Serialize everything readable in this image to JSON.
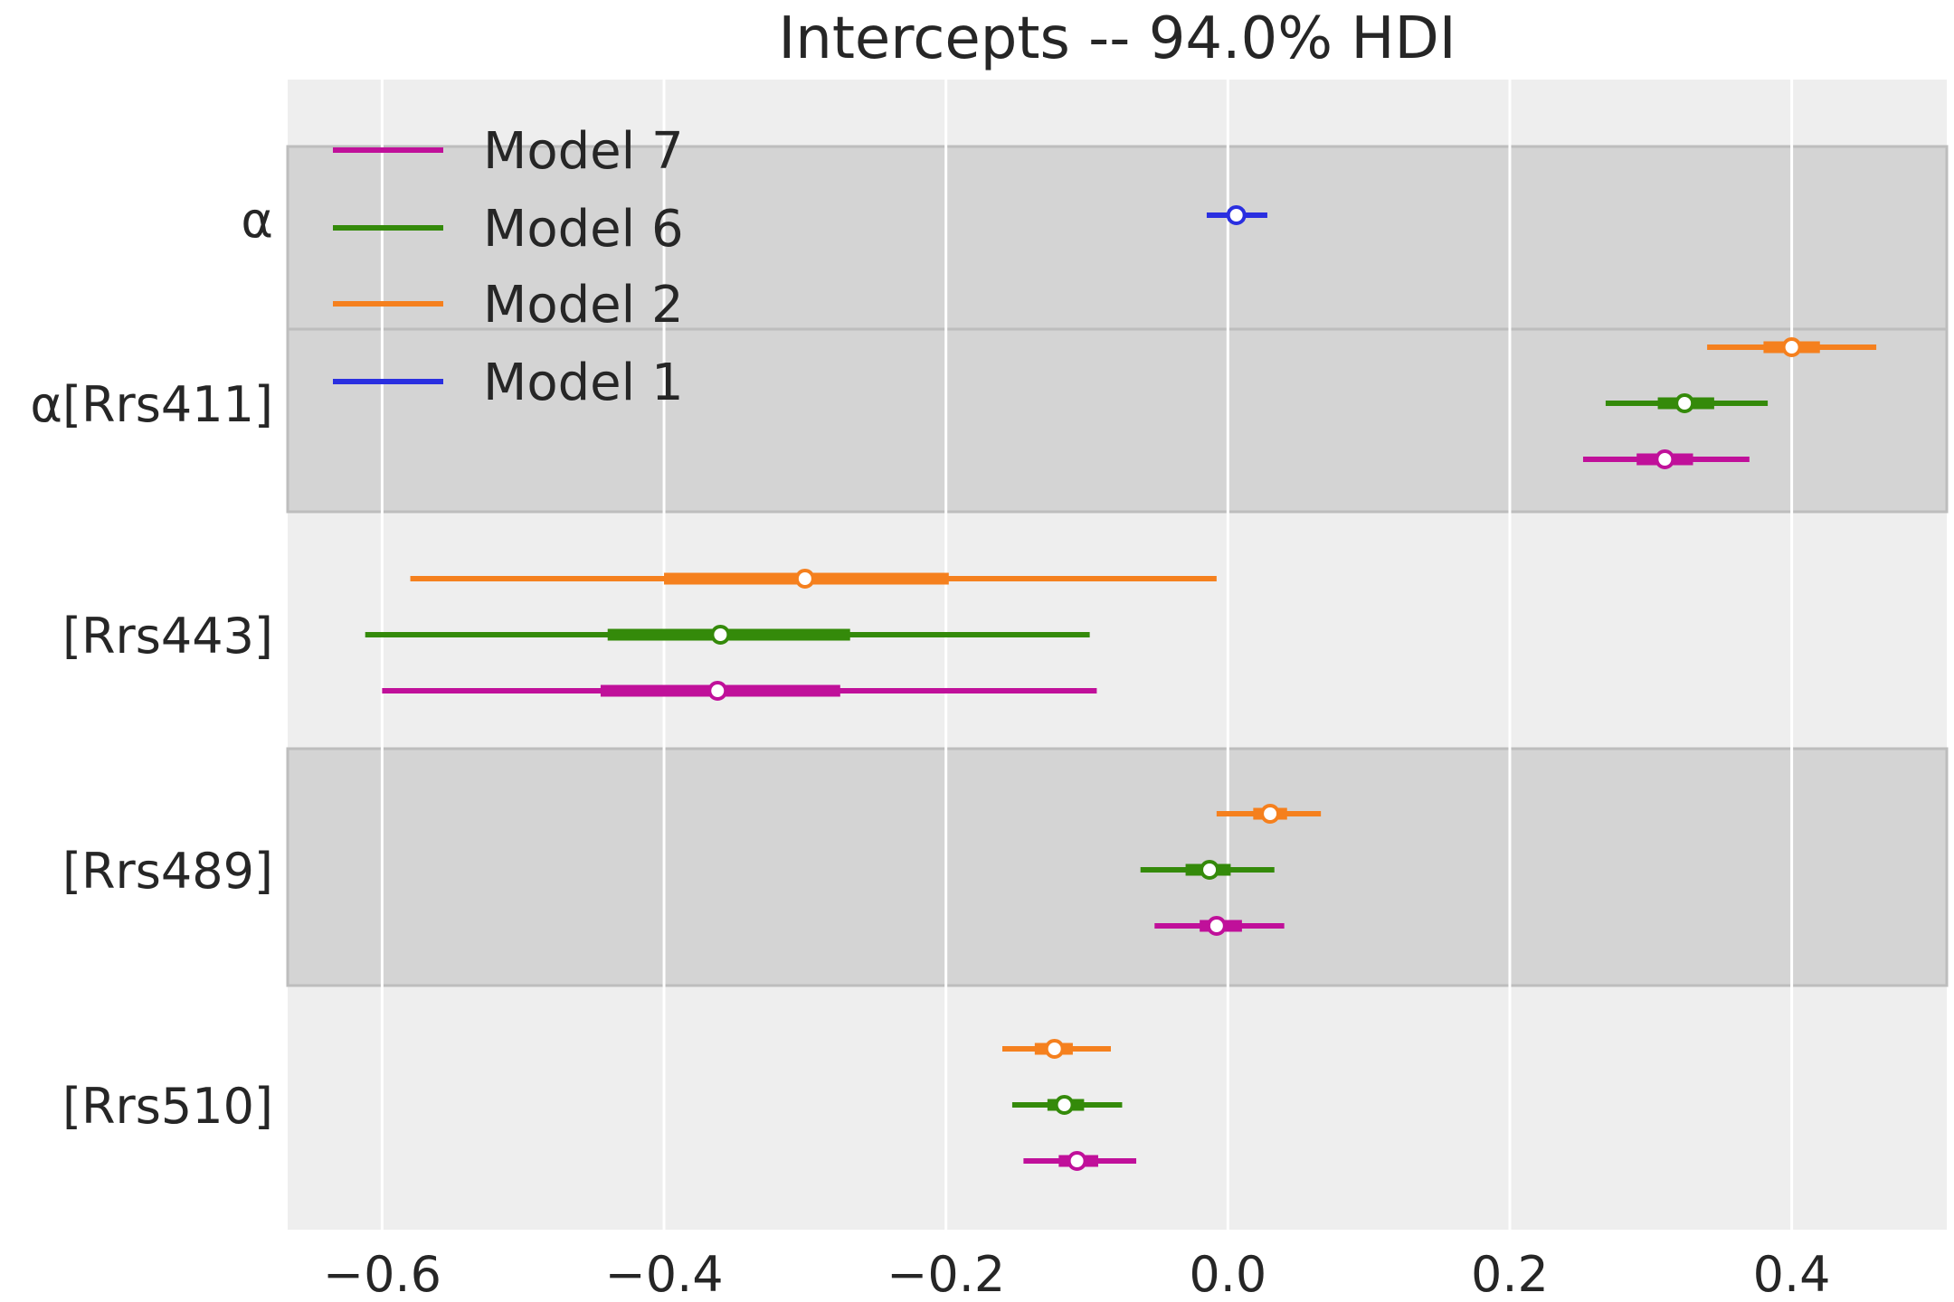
{
  "chart_data": {
    "type": "forest",
    "title": "Intercepts -- 94.0% HDI",
    "xlabel": "",
    "ylabel": "",
    "xlim": [
      -0.667,
      0.51
    ],
    "xticks": [
      -0.6,
      -0.4,
      -0.2,
      0.0,
      0.2,
      0.4
    ],
    "xtick_labels": [
      "−0.6",
      "−0.4",
      "−0.2",
      "0.0",
      "0.2",
      "0.4"
    ],
    "grid": true,
    "legend_position": "top-left",
    "rows": [
      {
        "label": "α",
        "band": true
      },
      {
        "label": "α[Rrs411]",
        "band": true
      },
      {
        "label": "[Rrs443]",
        "band": false
      },
      {
        "label": "[Rrs489]",
        "band": true
      },
      {
        "label": "[Rrs510]",
        "band": false
      }
    ],
    "series": [
      {
        "name": "Model 7",
        "color": "#c0109a",
        "points": [
          {
            "row": 1,
            "median": 0.31,
            "iqr": [
              0.29,
              0.33
            ],
            "hdi": [
              0.252,
              0.37
            ]
          },
          {
            "row": 2,
            "median": -0.362,
            "iqr": [
              -0.445,
              -0.275
            ],
            "hdi": [
              -0.6,
              -0.093
            ]
          },
          {
            "row": 3,
            "median": -0.008,
            "iqr": [
              -0.02,
              0.01
            ],
            "hdi": [
              -0.052,
              0.04
            ]
          },
          {
            "row": 4,
            "median": -0.107,
            "iqr": [
              -0.12,
              -0.092
            ],
            "hdi": [
              -0.145,
              -0.065
            ]
          }
        ]
      },
      {
        "name": "Model 6",
        "color": "#348a0a",
        "points": [
          {
            "row": 1,
            "median": 0.324,
            "iqr": [
              0.305,
              0.345
            ],
            "hdi": [
              0.268,
              0.383
            ]
          },
          {
            "row": 2,
            "median": -0.36,
            "iqr": [
              -0.44,
              -0.268
            ],
            "hdi": [
              -0.612,
              -0.098
            ]
          },
          {
            "row": 3,
            "median": -0.013,
            "iqr": [
              -0.03,
              0.002
            ],
            "hdi": [
              -0.062,
              0.033
            ]
          },
          {
            "row": 4,
            "median": -0.116,
            "iqr": [
              -0.128,
              -0.102
            ],
            "hdi": [
              -0.153,
              -0.075
            ]
          }
        ]
      },
      {
        "name": "Model 2",
        "color": "#f5801e",
        "points": [
          {
            "row": 1,
            "median": 0.4,
            "iqr": [
              0.38,
              0.42
            ],
            "hdi": [
              0.34,
              0.46
            ]
          },
          {
            "row": 2,
            "median": -0.3,
            "iqr": [
              -0.4,
              -0.198
            ],
            "hdi": [
              -0.58,
              -0.008
            ]
          },
          {
            "row": 3,
            "median": 0.03,
            "iqr": [
              0.018,
              0.042
            ],
            "hdi": [
              -0.008,
              0.066
            ]
          },
          {
            "row": 4,
            "median": -0.123,
            "iqr": [
              -0.137,
              -0.11
            ],
            "hdi": [
              -0.16,
              -0.083
            ]
          }
        ]
      },
      {
        "name": "Model 1",
        "color": "#2a2fe0",
        "points": [
          {
            "row": 0,
            "median": 0.006,
            "iqr": [
              0.0,
              0.012
            ],
            "hdi": [
              -0.015,
              0.028
            ]
          }
        ]
      }
    ]
  }
}
